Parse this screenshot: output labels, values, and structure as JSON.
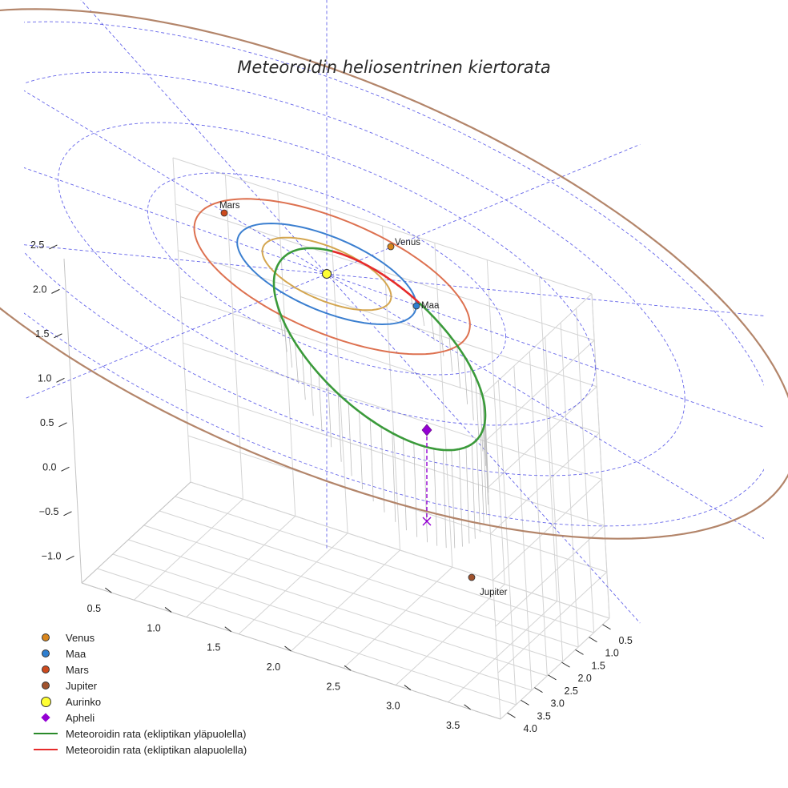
{
  "chart_data": {
    "type": "scatter",
    "title": "Meteoroidin heliosentrinen kiertorata",
    "axes": {
      "x_ticks": [
        "0.5",
        "1.0",
        "1.5",
        "2.0",
        "2.5",
        "3.0",
        "3.5"
      ],
      "y_ticks": [
        "0.5",
        "1.0",
        "1.5",
        "2.0",
        "2.5",
        "3.0",
        "3.5",
        "4.0"
      ],
      "z_ticks": [
        "−1.0",
        "−0.5",
        "0.0",
        "0.5",
        "1.0",
        "1.5",
        "2.0",
        "2.5"
      ],
      "zlim": [
        -1.0,
        2.5
      ],
      "grid": true
    },
    "planets": [
      {
        "name": "Venus",
        "semi_major_axis_au": 0.72,
        "color": "#d9861c"
      },
      {
        "name": "Maa",
        "semi_major_axis_au": 1.0,
        "color": "#2f7fd0"
      },
      {
        "name": "Mars",
        "semi_major_axis_au": 1.52,
        "color": "#cd4a1e"
      },
      {
        "name": "Jupiter",
        "semi_major_axis_au": 5.2,
        "color": "#a0522d"
      }
    ],
    "orbit_colors": {
      "Venus": "#d4a650",
      "Maa": "#3b7fd0",
      "Mars": "#dd7150",
      "Jupiter": "#b3856a"
    },
    "sun": {
      "name": "Aurinko",
      "color": "#ffff33"
    },
    "meteoroid": {
      "aphelion_au": 2.75,
      "perihelion_au": 0.1,
      "inclination_deg": 23,
      "above_color": "#3a9a3a",
      "below_color": "#e62b2b"
    },
    "aphelion": {
      "name": "Apheli",
      "color": "#9400d3"
    },
    "ecliptic_grid_color": "#4a4ae6",
    "legend": [
      {
        "label": "Venus",
        "kind": "dot",
        "color": "#d9861c"
      },
      {
        "label": "Maa",
        "kind": "dot",
        "color": "#2f7fd0"
      },
      {
        "label": "Mars",
        "kind": "dot",
        "color": "#cd4a1e"
      },
      {
        "label": "Jupiter",
        "kind": "dot",
        "color": "#a0522d"
      },
      {
        "label": "Aurinko",
        "kind": "bigdot",
        "color": "#ffff33"
      },
      {
        "label": "Apheli",
        "kind": "diamond",
        "color": "#9400d3"
      },
      {
        "label": "Meteoroidin rata (ekliptikan yläpuolella)",
        "kind": "line",
        "color": "#2a8a2a"
      },
      {
        "label": "Meteoroidin rata (ekliptikan alapuolella)",
        "kind": "line",
        "color": "#e62b2b"
      }
    ],
    "legend_placement": "bottom-left"
  }
}
